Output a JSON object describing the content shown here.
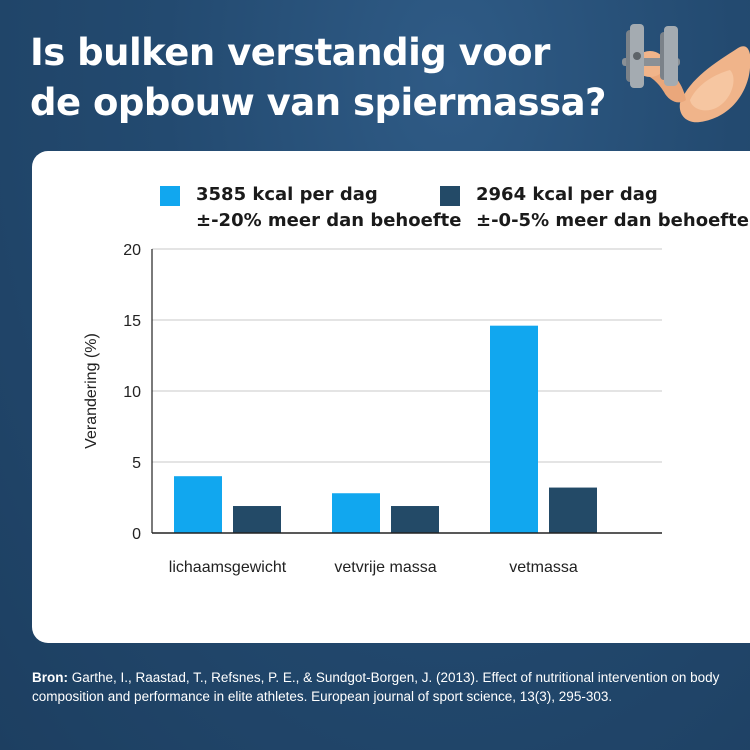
{
  "header": {
    "title_line1": "Is bulken verstandig voor",
    "title_line2": "de opbouw van spiermassa?"
  },
  "legend": [
    {
      "line1": "3585 kcal per dag",
      "line2": "±-20% meer dan behoefte",
      "color": "#11a7ef"
    },
    {
      "line1": "2964 kcal per dag",
      "line2": "±-0-5% meer dan behoefte",
      "color": "#234a67"
    }
  ],
  "source": {
    "label": "Bron:",
    "text": "Garthe, I., Raastad, T., Refsnes, P. E., & Sundgot-Borgen, J. (2013). Effect of nutritional intervention on body composition and performance in elite athletes. European journal of sport science, 13(3), 295-303."
  },
  "chart_data": {
    "type": "bar",
    "categories": [
      "lichaamsgewicht",
      "vetvrije massa",
      "vetmassa"
    ],
    "series": [
      {
        "name": "3585 kcal per dag",
        "values": [
          4.0,
          2.8,
          14.6
        ],
        "color": "#11a7ef"
      },
      {
        "name": "2964 kcal per dag",
        "values": [
          1.9,
          1.9,
          3.2
        ],
        "color": "#234a67"
      }
    ],
    "ylabel": "Verandering (%)",
    "ylim": [
      0,
      20
    ],
    "yticks": [
      0,
      5,
      10,
      15,
      20
    ],
    "grid": true,
    "legend_position": "top"
  }
}
